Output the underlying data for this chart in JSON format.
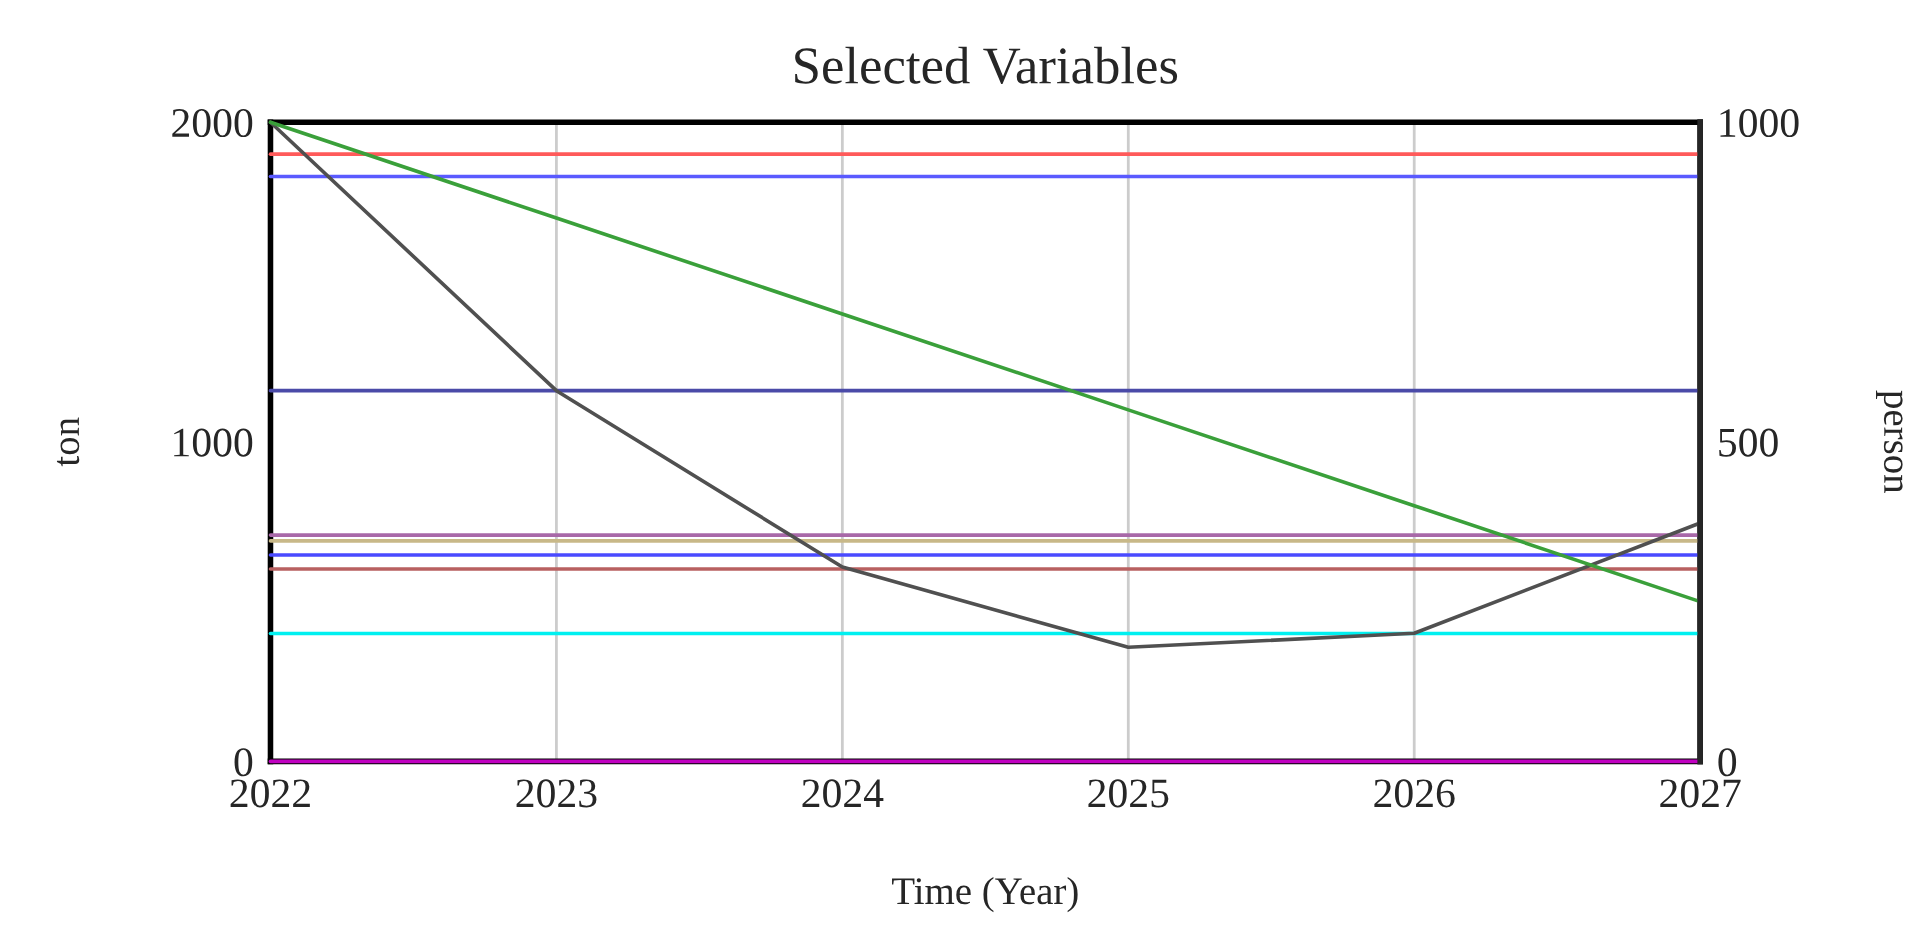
{
  "chart_data": {
    "type": "line",
    "title": "Selected Variables",
    "xlabel": "Time (Year)",
    "ylabel": "ton",
    "y2label": "person",
    "x": [
      2022,
      2023,
      2024,
      2025,
      2026,
      2027
    ],
    "series": [
      {
        "color": "#ff5a5a",
        "values": [
          1900,
          1900,
          1900,
          1900,
          1900,
          1900
        ]
      },
      {
        "color": "#5a5aff",
        "values": [
          1830,
          1830,
          1830,
          1830,
          1830,
          1830
        ]
      },
      {
        "color": "#4a4aa8",
        "values": [
          1160,
          1160,
          1160,
          1160,
          1160,
          1160
        ]
      },
      {
        "color": "#a868a8",
        "values": [
          708,
          708,
          708,
          708,
          708,
          708
        ]
      },
      {
        "color": "#c8b888",
        "values": [
          690,
          690,
          690,
          690,
          690,
          690
        ]
      },
      {
        "color": "#4a4aff",
        "values": [
          646,
          646,
          646,
          646,
          646,
          646
        ]
      },
      {
        "color": "#b86060",
        "values": [
          602,
          602,
          602,
          602,
          602,
          602
        ]
      },
      {
        "color": "#00f0f0",
        "values": [
          400,
          400,
          400,
          400,
          400,
          400
        ]
      },
      {
        "color": "#c000c0",
        "values": [
          0,
          0,
          0,
          0,
          0,
          0
        ]
      },
      {
        "color": "#505050",
        "values": [
          2000,
          1160,
          608,
          357,
          401,
          746
        ]
      },
      {
        "color": "#3aa03a",
        "values": [
          2000,
          1700,
          1400,
          1100,
          800,
          500
        ]
      }
    ],
    "xlim": [
      2022,
      2027
    ],
    "xticks": [
      2022,
      2023,
      2024,
      2025,
      2026,
      2027
    ],
    "ylim": [
      0,
      2000
    ],
    "yticks": [
      0,
      1000,
      2000
    ],
    "y2lim": [
      0,
      1000
    ],
    "y2ticks": [
      0,
      500,
      1000
    ],
    "grid": "x",
    "legend": false,
    "marker": "none",
    "line_style": "solid"
  }
}
